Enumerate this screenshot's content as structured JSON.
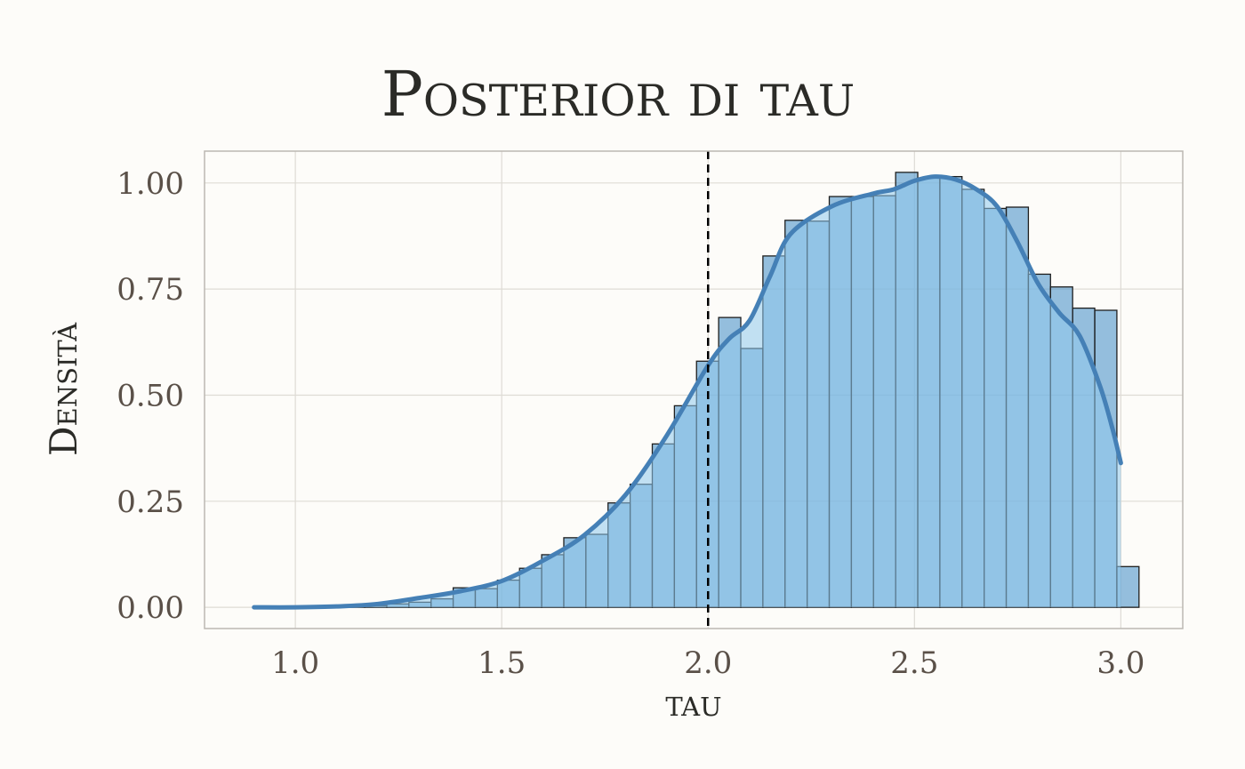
{
  "chart_data": {
    "type": "bar",
    "title": "Posterior di tau",
    "xlabel": "tau",
    "ylabel": "Densità",
    "xlim": [
      0.78,
      3.15
    ],
    "ylim": [
      -0.05,
      1.075
    ],
    "x_ticks": [
      1.0,
      1.5,
      2.0,
      2.5,
      3.0
    ],
    "x_tick_labels": [
      "1.0",
      "1.5",
      "2.0",
      "2.5",
      "3.0"
    ],
    "y_ticks": [
      0.0,
      0.25,
      0.5,
      0.75,
      1.0
    ],
    "y_tick_labels": [
      "0.00",
      "0.25",
      "0.50",
      "0.75",
      "1.00"
    ],
    "grid": true,
    "reference_line": {
      "x": 2.0,
      "style": "dashed",
      "color": "#000000"
    },
    "histogram": {
      "bin_width": 0.0536,
      "bin_edges_start": 0.9,
      "values": [
        0.001,
        0.0,
        0.0,
        0.001,
        0.002,
        0.004,
        0.008,
        0.012,
        0.02,
        0.046,
        0.044,
        0.064,
        0.092,
        0.124,
        0.164,
        0.172,
        0.246,
        0.29,
        0.385,
        0.475,
        0.58,
        0.683,
        0.61,
        0.828,
        0.912,
        0.91,
        0.968,
        0.968,
        0.97,
        1.025,
        1.012,
        1.015,
        0.985,
        0.94,
        0.943,
        0.785,
        0.755,
        0.705,
        0.7,
        0.096
      ],
      "fill_color": "#4f95c9",
      "edge_color": "#1e1e1e"
    },
    "density": {
      "x": [
        0.9,
        1.0,
        1.1,
        1.2,
        1.3,
        1.4,
        1.5,
        1.6,
        1.7,
        1.8,
        1.9,
        2.0,
        2.05,
        2.1,
        2.15,
        2.2,
        2.3,
        2.4,
        2.45,
        2.5,
        2.55,
        2.6,
        2.65,
        2.7,
        2.75,
        2.8,
        2.85,
        2.9,
        2.95,
        2.98,
        3.0
      ],
      "y": [
        0.0,
        0.0,
        0.002,
        0.008,
        0.022,
        0.038,
        0.062,
        0.11,
        0.17,
        0.265,
        0.405,
        0.57,
        0.632,
        0.675,
        0.78,
        0.88,
        0.945,
        0.975,
        0.985,
        1.005,
        1.015,
        1.008,
        0.985,
        0.945,
        0.86,
        0.762,
        0.695,
        0.64,
        0.52,
        0.42,
        0.34
      ],
      "color": "#4580b6",
      "fill_color": "#8fc8ec"
    }
  }
}
